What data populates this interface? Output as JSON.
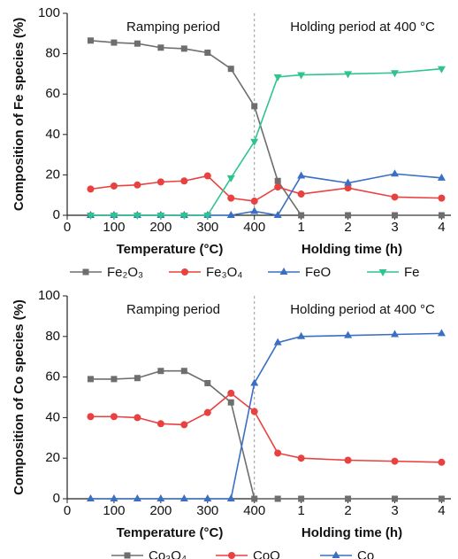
{
  "chart_data": [
    {
      "type": "line",
      "ylabel": "Composition of Fe species (%)",
      "xlabels": [
        "Temperature (°C)",
        "Holding time (h)"
      ],
      "annotations": [
        "Ramping period",
        "Holding period at 400 °C"
      ],
      "vline": 400,
      "x": [
        50,
        100,
        150,
        200,
        250,
        300,
        350,
        400,
        450,
        500,
        600,
        700,
        800
      ],
      "xlim": [
        0,
        820
      ],
      "xticks": [
        0,
        100,
        200,
        300,
        400,
        {
          "value": 500,
          "label": "1"
        },
        {
          "value": 600,
          "label": "2"
        },
        {
          "value": 700,
          "label": "3"
        },
        {
          "value": 800,
          "label": "4"
        }
      ],
      "ylim": [
        0,
        100
      ],
      "yticks": [
        0,
        20,
        40,
        60,
        80,
        100
      ],
      "series": [
        {
          "name": "Fe₂O₃",
          "color": "#6e6e6e",
          "marker": "square",
          "values": [
            86.5,
            85.5,
            85,
            83,
            82.5,
            80.5,
            72.5,
            54,
            17,
            0,
            0,
            0,
            0
          ]
        },
        {
          "name": "Fe₃O₄",
          "color": "#e8413f",
          "marker": "circle",
          "values": [
            13,
            14.5,
            15,
            16.5,
            17,
            19.5,
            8.5,
            7,
            14,
            10.5,
            13.5,
            9,
            8.5
          ]
        },
        {
          "name": "FeO",
          "color": "#3a6fc4",
          "marker": "triangle-up",
          "values": [
            0,
            0,
            0,
            0,
            0,
            0,
            0,
            2,
            0,
            19.5,
            16,
            20.5,
            18.5
          ]
        },
        {
          "name": "Fe",
          "color": "#2fc48d",
          "marker": "triangle-down",
          "values": [
            0,
            0,
            0,
            0,
            0,
            0,
            18.5,
            36.5,
            68.5,
            69.5,
            70,
            70.5,
            72.5
          ]
        }
      ]
    },
    {
      "type": "line",
      "ylabel": "Composition of Co species (%)",
      "xlabels": [
        "Temperature (°C)",
        "Holding time (h)"
      ],
      "annotations": [
        "Ramping period",
        "Holding period at 400 °C"
      ],
      "vline": 400,
      "x": [
        50,
        100,
        150,
        200,
        250,
        300,
        350,
        400,
        450,
        500,
        600,
        700,
        800
      ],
      "xlim": [
        0,
        820
      ],
      "xticks": [
        0,
        100,
        200,
        300,
        400,
        {
          "value": 500,
          "label": "1"
        },
        {
          "value": 600,
          "label": "2"
        },
        {
          "value": 700,
          "label": "3"
        },
        {
          "value": 800,
          "label": "4"
        }
      ],
      "ylim": [
        0,
        100
      ],
      "yticks": [
        0,
        20,
        40,
        60,
        80,
        100
      ],
      "series": [
        {
          "name": "Co₃O₄",
          "color": "#6e6e6e",
          "marker": "square",
          "values": [
            59,
            59,
            59.5,
            63,
            63,
            57,
            47.5,
            0,
            0,
            0,
            0,
            0,
            0
          ]
        },
        {
          "name": "CoO",
          "color": "#e8413f",
          "marker": "circle",
          "values": [
            40.5,
            40.5,
            40,
            37,
            36.5,
            42.5,
            52,
            43,
            22.5,
            20,
            19,
            18.5,
            18
          ]
        },
        {
          "name": "Co",
          "color": "#3a6fc4",
          "marker": "triangle-up",
          "values": [
            0,
            0,
            0,
            0,
            0,
            0,
            0,
            57,
            77,
            80,
            80.5,
            81,
            81.5
          ]
        }
      ]
    }
  ]
}
